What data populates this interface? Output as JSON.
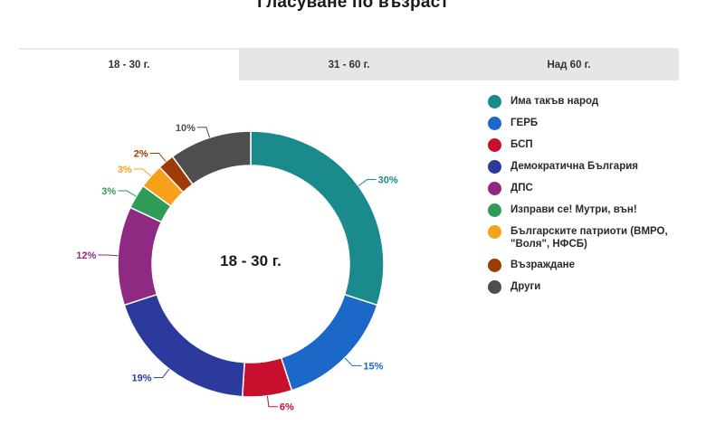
{
  "title": "Гласуване по възраст",
  "tabs": [
    {
      "label": "18 - 30 г.",
      "active": true
    },
    {
      "label": "31 - 60 г.",
      "active": false
    },
    {
      "label": "Над 60 г.",
      "active": false
    }
  ],
  "chart_data": {
    "type": "pie",
    "center_label": "18 - 30 г.",
    "legend_position": "right",
    "slices": [
      {
        "name": "Има такъв народ",
        "value": 30,
        "label": "30%",
        "color": "#1b8a8c"
      },
      {
        "name": "ГЕРБ",
        "value": 15,
        "label": "15%",
        "color": "#1c68c9"
      },
      {
        "name": "БСП",
        "value": 6,
        "label": "6%",
        "color": "#c8102e"
      },
      {
        "name": "Демократична България",
        "value": 19,
        "label": "19%",
        "color": "#2d3a9d"
      },
      {
        "name": "ДПС",
        "value": 12,
        "label": "12%",
        "color": "#8e2a82"
      },
      {
        "name": "Изправи се! Мутри, вън!",
        "value": 3,
        "label": "3%",
        "color": "#2e9c57"
      },
      {
        "name": "Българските патриоти (ВМРО, \"Воля\", НФСБ)",
        "value": 3,
        "label": "3%",
        "color": "#f7a11a"
      },
      {
        "name": "Възраждане",
        "value": 2,
        "label": "2%",
        "color": "#9e3a06"
      },
      {
        "name": "Други",
        "value": 10,
        "label": "10%",
        "color": "#4e4e4e"
      }
    ]
  }
}
